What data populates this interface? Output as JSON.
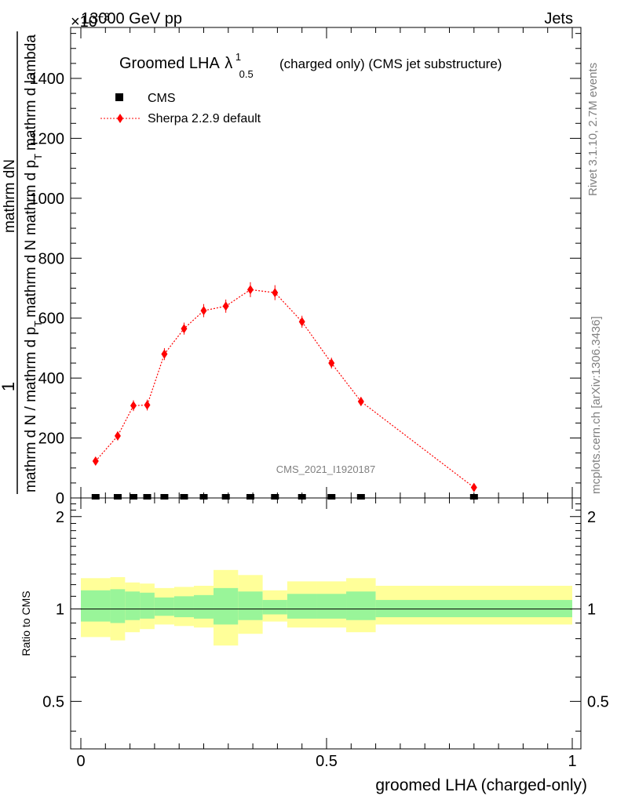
{
  "header": {
    "energy_label": "13000 GeV pp",
    "process_label": "Jets",
    "multiplier": "×10",
    "multiplier_exp": "−3"
  },
  "side": {
    "rivet_info": "Rivet 3.1.10,  2.7M events",
    "mcplots_info": "mcplots.cern.ch [arXiv:1306.3436]"
  },
  "colors": {
    "mc": "#ff0000",
    "band_inner": "#99f599",
    "band_outer": "#ffff99",
    "data": "#000000"
  },
  "chart_data": [
    {
      "type": "scatter",
      "title_main": "Groomed LHA",
      "title_symbol": "λ",
      "title_sup": "1",
      "title_sub": "0.5",
      "title_rest": "(charged only) (CMS jet substructure)",
      "watermark": "CMS_2021_I1920187",
      "ylabel_1": "1",
      "ylabel_2a": "mathrm d N / mathrm d p",
      "ylabel_2b": "T",
      "ylabel_2c": "mathrm d N",
      "ylabel_3a": "mathrm dN",
      "ylabel_3b": "mathrm d p",
      "ylabel_3c": "T",
      "ylabel_3d": "mathrm d lambda",
      "ylim": [
        0,
        1570
      ],
      "xlim": [
        -0.02,
        1.02
      ],
      "yticks": [
        0,
        200,
        400,
        600,
        800,
        1000,
        1200,
        1400
      ],
      "ytick_labels": [
        "0",
        "200",
        "400",
        "600",
        "800",
        "1000",
        "1200",
        "1400"
      ],
      "series": [
        {
          "name": "CMS",
          "x": [
            0.03,
            0.075,
            0.107,
            0.135,
            0.17,
            0.21,
            0.25,
            0.295,
            0.345,
            0.395,
            0.45,
            0.51,
            0.57,
            0.8
          ],
          "y": [
            0,
            0,
            0,
            0,
            0,
            0,
            0,
            0,
            0,
            0,
            0,
            0,
            0,
            0
          ]
        },
        {
          "name": "Sherpa 2.2.9 default",
          "x": [
            0.03,
            0.075,
            0.107,
            0.135,
            0.17,
            0.21,
            0.25,
            0.295,
            0.345,
            0.395,
            0.45,
            0.51,
            0.57,
            0.8
          ],
          "y": [
            123,
            207,
            308,
            310,
            480,
            565,
            625,
            640,
            695,
            685,
            588,
            450,
            322,
            35
          ],
          "err": [
            12,
            15,
            18,
            18,
            20,
            20,
            22,
            22,
            25,
            25,
            20,
            18,
            15,
            10
          ]
        }
      ]
    },
    {
      "type": "area",
      "ylabel": "Ratio to CMS",
      "xlabel": "groomed LHA (charged-only)",
      "ylim": [
        0.35,
        2.3
      ],
      "yticks": [
        0.5,
        1,
        2
      ],
      "ytick_labels": [
        "0.5",
        "1",
        "2"
      ],
      "xticks": [
        0,
        0.5,
        1
      ],
      "xtick_labels": [
        "0",
        "0.5",
        "1"
      ],
      "bins": [
        {
          "x0": 0.0,
          "x1": 0.06,
          "inner": [
            0.91,
            1.15
          ],
          "outer": [
            0.81,
            1.26
          ]
        },
        {
          "x0": 0.06,
          "x1": 0.09,
          "inner": [
            0.9,
            1.16
          ],
          "outer": [
            0.79,
            1.27
          ]
        },
        {
          "x0": 0.09,
          "x1": 0.12,
          "inner": [
            0.92,
            1.14
          ],
          "outer": [
            0.84,
            1.22
          ]
        },
        {
          "x0": 0.12,
          "x1": 0.15,
          "inner": [
            0.93,
            1.13
          ],
          "outer": [
            0.86,
            1.21
          ]
        },
        {
          "x0": 0.15,
          "x1": 0.19,
          "inner": [
            0.95,
            1.09
          ],
          "outer": [
            0.89,
            1.17
          ]
        },
        {
          "x0": 0.19,
          "x1": 0.23,
          "inner": [
            0.94,
            1.1
          ],
          "outer": [
            0.88,
            1.18
          ]
        },
        {
          "x0": 0.23,
          "x1": 0.27,
          "inner": [
            0.93,
            1.11
          ],
          "outer": [
            0.87,
            1.19
          ]
        },
        {
          "x0": 0.27,
          "x1": 0.32,
          "inner": [
            0.89,
            1.17
          ],
          "outer": [
            0.76,
            1.34
          ]
        },
        {
          "x0": 0.32,
          "x1": 0.37,
          "inner": [
            0.92,
            1.14
          ],
          "outer": [
            0.83,
            1.29
          ]
        },
        {
          "x0": 0.37,
          "x1": 0.42,
          "inner": [
            0.96,
            1.07
          ],
          "outer": [
            0.91,
            1.15
          ]
        },
        {
          "x0": 0.42,
          "x1": 0.48,
          "inner": [
            0.93,
            1.12
          ],
          "outer": [
            0.87,
            1.23
          ]
        },
        {
          "x0": 0.48,
          "x1": 0.54,
          "inner": [
            0.93,
            1.12
          ],
          "outer": [
            0.87,
            1.23
          ]
        },
        {
          "x0": 0.54,
          "x1": 0.6,
          "inner": [
            0.92,
            1.14
          ],
          "outer": [
            0.84,
            1.26
          ]
        },
        {
          "x0": 0.6,
          "x1": 1.0,
          "inner": [
            0.94,
            1.07
          ],
          "outer": [
            0.89,
            1.19
          ]
        }
      ]
    }
  ]
}
